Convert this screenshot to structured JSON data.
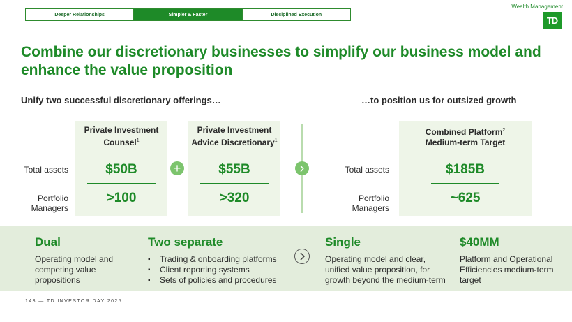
{
  "tabs": [
    "Deeper Relationships",
    "Simpler & Faster",
    "Disciplined Execution"
  ],
  "brand": {
    "division": "Wealth Management",
    "logo_text": "TD"
  },
  "title": "Combine our discretionary businesses to simplify our business model and enhance the value proposition",
  "left_subtitle": "Unify two successful discretionary offerings…",
  "right_subtitle": "…to position us for outsized growth",
  "row_labels": {
    "assets": "Total assets",
    "pm_line1": "Portfolio",
    "pm_line2": "Managers"
  },
  "cards": [
    {
      "line1": "Private Investment",
      "line2": "Counsel",
      "sup": "1",
      "assets": "$50B",
      "managers": ">100"
    },
    {
      "line1": "Private Investment",
      "line2": "Advice Discretionary",
      "sup": "1",
      "assets": "$55B",
      "managers": ">320"
    },
    {
      "line1": "Combined Platform",
      "line1_sup": "2",
      "line2": "Medium-term Target",
      "assets": "$185B",
      "managers": "~625"
    }
  ],
  "icons": {
    "plus": "+",
    "arrow": "›"
  },
  "bottom": {
    "dual": {
      "heading": "Dual",
      "text": "Operating model and competing value propositions"
    },
    "two": {
      "heading": "Two separate",
      "items": [
        "Trading & onboarding platforms",
        "Client reporting systems",
        "Sets of policies and procedures"
      ]
    },
    "single": {
      "heading": "Single",
      "text": "Operating model and clear, unified value proposition, for growth beyond the medium-term"
    },
    "money": {
      "heading": "$40MM",
      "text": "Platform and Operational Efficiencies medium-term target"
    }
  },
  "footer": "143 — TD INVESTOR DAY 2025",
  "colors": {
    "accent": "#1e8a28",
    "card_bg": "#eef5e8",
    "band_bg": "#e3eddc"
  }
}
